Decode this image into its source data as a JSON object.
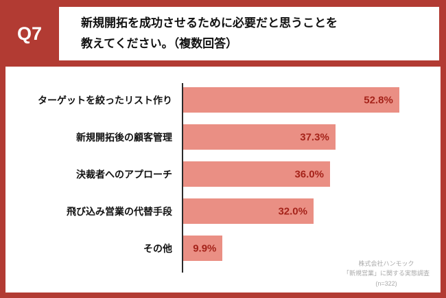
{
  "header": {
    "question_label": "Q7",
    "title_line1": "新規開拓を成功させるために必要だと思うことを",
    "title_line2": "教えてください。（複数回答）"
  },
  "chart_data": {
    "type": "bar",
    "orientation": "horizontal",
    "title": "新規開拓を成功させるために必要だと思うことを教えてください。（複数回答）",
    "categories": [
      "ターゲットを絞ったリスト作り",
      "新規開拓後の顧客管理",
      "決裁者へのアプローチ",
      "飛び込み営業の代替手段",
      "その他"
    ],
    "values": [
      52.8,
      37.3,
      36.0,
      32.0,
      9.9
    ],
    "value_labels": [
      "52.8%",
      "37.3%",
      "36.0%",
      "32.0%",
      "9.9%"
    ],
    "xlim": [
      0,
      60
    ],
    "grid": false,
    "legend": false
  },
  "footnote": {
    "line1": "株式会社ハンモック",
    "line2": "「新規営業」に関する実態調査",
    "line3": "(n=322)"
  },
  "colors": {
    "frame": "#b23b33",
    "panel": "#ffffff",
    "bar": "#ea8f84",
    "value_text": "#a5231a",
    "category_text": "#111111",
    "question_text": "#ffffff",
    "footnote_text": "#a9a9a9",
    "axis_line": "#2a2a2a"
  }
}
